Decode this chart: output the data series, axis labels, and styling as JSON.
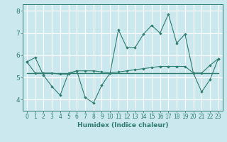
{
  "xlabel": "Humidex (Indice chaleur)",
  "ylabel": "",
  "bg_color": "#cce8ef",
  "grid_color": "#ffffff",
  "line_color": "#2e7d6e",
  "xlim": [
    -0.5,
    23.5
  ],
  "ylim": [
    3.5,
    8.3
  ],
  "yticks": [
    4,
    5,
    6,
    7,
    8
  ],
  "xticks": [
    0,
    1,
    2,
    3,
    4,
    5,
    6,
    7,
    8,
    9,
    10,
    11,
    12,
    13,
    14,
    15,
    16,
    17,
    18,
    19,
    20,
    21,
    22,
    23
  ],
  "line1_x": [
    0,
    1,
    2,
    3,
    4,
    5,
    6,
    7,
    8,
    9,
    10,
    11,
    12,
    13,
    14,
    15,
    16,
    17,
    18,
    19,
    20,
    21,
    22,
    23
  ],
  "line1_y": [
    5.7,
    5.9,
    5.1,
    4.6,
    4.2,
    5.2,
    5.3,
    4.1,
    3.85,
    4.65,
    5.2,
    7.15,
    6.35,
    6.35,
    6.95,
    7.35,
    7.0,
    7.85,
    6.55,
    6.95,
    5.2,
    4.35,
    4.9,
    5.85
  ],
  "line2_x": [
    0,
    1,
    2,
    3,
    4,
    5,
    6,
    7,
    8,
    9,
    10,
    11,
    12,
    13,
    14,
    15,
    16,
    17,
    18,
    19,
    20,
    21,
    22,
    23
  ],
  "line2_y": [
    5.7,
    5.2,
    5.2,
    5.2,
    5.15,
    5.15,
    5.3,
    5.3,
    5.3,
    5.25,
    5.2,
    5.25,
    5.3,
    5.35,
    5.4,
    5.45,
    5.5,
    5.5,
    5.5,
    5.5,
    5.2,
    5.2,
    5.55,
    5.85
  ],
  "line3_x": [
    0,
    23
  ],
  "line3_y": [
    5.2,
    5.2
  ],
  "xlabel_fontsize": 6.5,
  "tick_fontsize": 5.5
}
